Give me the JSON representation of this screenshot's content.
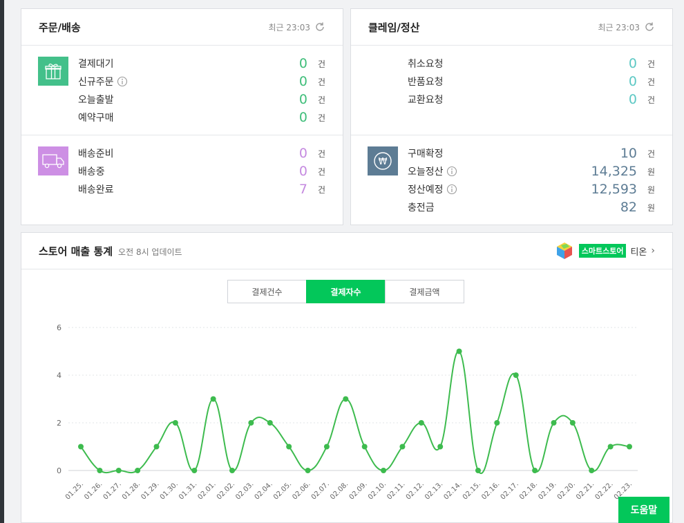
{
  "orders": {
    "title": "주문/배송",
    "updated": "최근 23:03",
    "payment_group": [
      {
        "label": "결제대기",
        "value": "0",
        "unit": "건",
        "info": false
      },
      {
        "label": "신규주문",
        "value": "0",
        "unit": "건",
        "info": true
      },
      {
        "label": "오늘출발",
        "value": "0",
        "unit": "건",
        "info": false
      },
      {
        "label": "예약구매",
        "value": "0",
        "unit": "건",
        "info": false
      }
    ],
    "delivery_group": [
      {
        "label": "배송준비",
        "value": "0",
        "unit": "건"
      },
      {
        "label": "배송중",
        "value": "0",
        "unit": "건"
      },
      {
        "label": "배송완료",
        "value": "7",
        "unit": "건"
      }
    ]
  },
  "claims": {
    "title": "클레임/정산",
    "updated": "최근 23:03",
    "claim_group": [
      {
        "label": "취소요청",
        "value": "0",
        "unit": "건"
      },
      {
        "label": "반품요청",
        "value": "0",
        "unit": "건"
      },
      {
        "label": "교환요청",
        "value": "0",
        "unit": "건"
      }
    ],
    "settle_group": [
      {
        "label": "구매확정",
        "value": "10",
        "unit": "건",
        "info": false
      },
      {
        "label": "오늘정산",
        "value": "14,325",
        "unit": "원",
        "info": true
      },
      {
        "label": "정산예정",
        "value": "12,593",
        "unit": "원",
        "info": true
      },
      {
        "label": "충전금",
        "value": "82",
        "unit": "원",
        "info": false
      }
    ]
  },
  "stats": {
    "title": "스토어 매출 통계",
    "subtitle": "오전 8시 업데이트",
    "store_badge": "스마트스토어",
    "store_name": "티온",
    "chevron": "›",
    "tabs": [
      {
        "label": "결제건수",
        "active": false
      },
      {
        "label": "결제자수",
        "active": true
      },
      {
        "label": "결제금액",
        "active": false
      }
    ]
  },
  "help_label": "도움말",
  "colors": {
    "accent": "#03c75a",
    "line": "#3dbb4e",
    "gift_box": "#43c08a",
    "return_box": "#6ccad0",
    "truck_box": "#cd8fe4",
    "won_box": "#5d7c94"
  },
  "chart_data": {
    "type": "line",
    "categories": [
      "01.25.",
      "01.26.",
      "01.27.",
      "01.28.",
      "01.29.",
      "01.30.",
      "01.31.",
      "02.01.",
      "02.02.",
      "02.03.",
      "02.04.",
      "02.05.",
      "02.06.",
      "02.07.",
      "02.08.",
      "02.09.",
      "02.10.",
      "02.11.",
      "02.12.",
      "02.13.",
      "02.14.",
      "02.15.",
      "02.16.",
      "02.17.",
      "02.18.",
      "02.19.",
      "02.20.",
      "02.21.",
      "02.22.",
      "02.23."
    ],
    "series": [
      {
        "values": [
          1,
          0,
          0,
          0,
          1,
          2,
          0,
          3,
          0,
          2,
          2,
          1,
          0,
          1,
          3,
          1,
          0,
          1,
          2,
          1,
          5,
          0,
          2,
          4,
          0,
          2,
          2,
          0,
          1,
          1
        ]
      }
    ],
    "yticks": [
      0,
      2,
      4,
      6
    ],
    "ylim": [
      0,
      6
    ],
    "grid": true,
    "xlabel": "",
    "ylabel": ""
  }
}
